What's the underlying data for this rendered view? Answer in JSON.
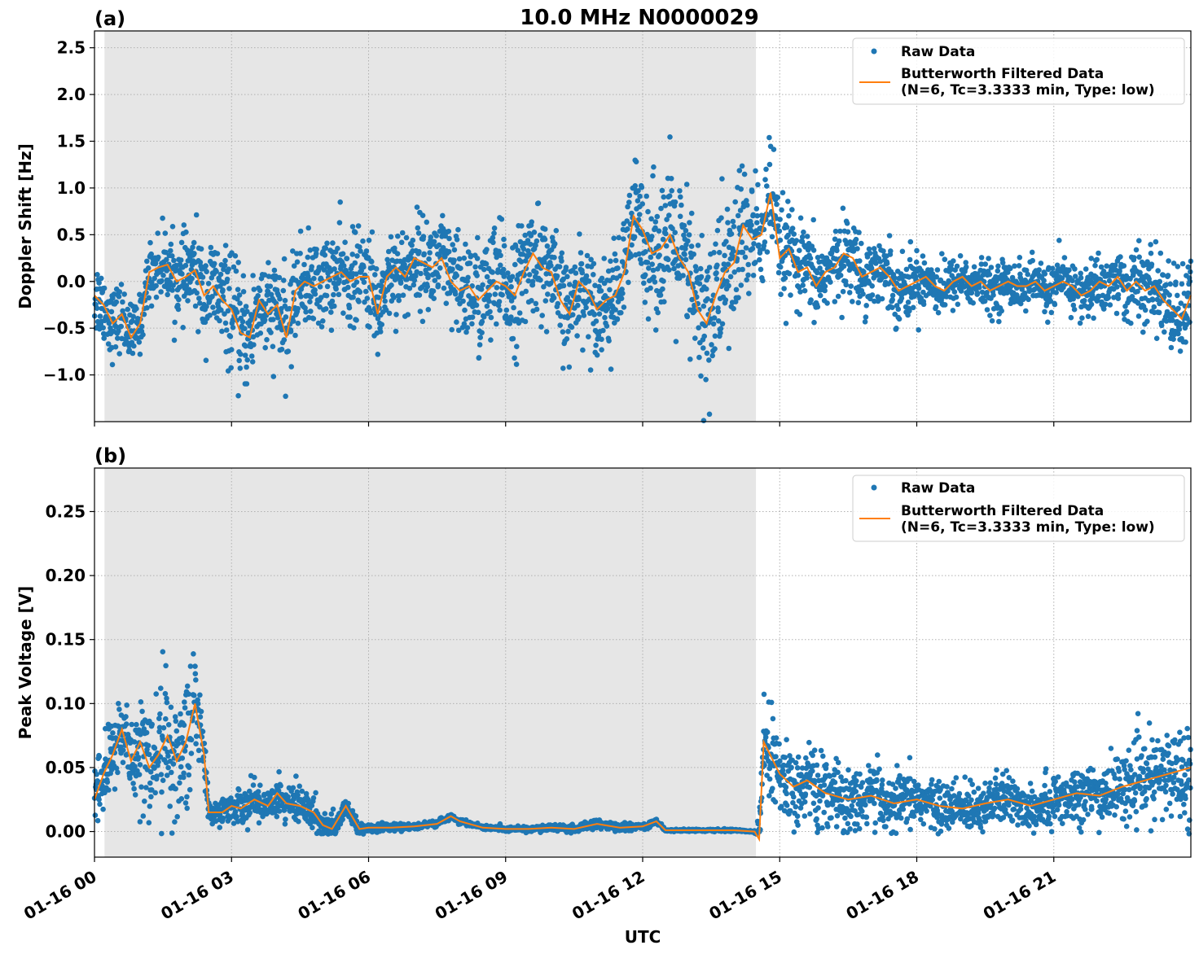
{
  "figure": {
    "title": "10.0 MHz N0000029",
    "xlabel": "UTC",
    "colors": {
      "raw": "#1f77b4",
      "filtered": "#ff7f0e",
      "shade": "#e6e6e6",
      "grid": "#b0b0b0"
    }
  },
  "chart_data": [
    {
      "type": "scatter",
      "panel_label": "(a)",
      "title": "10.0 MHz N0000029",
      "xlabel": "",
      "ylabel": "Doppler Shift [Hz]",
      "xlim": [
        0,
        24
      ],
      "ylim": [
        -1.5,
        2.68
      ],
      "x_ticks": [
        0,
        3,
        6,
        9,
        12,
        15,
        18,
        21
      ],
      "y_ticks": [
        -1.0,
        -0.5,
        0.0,
        0.5,
        1.0,
        1.5,
        2.0,
        2.5
      ],
      "y_tick_labels": [
        "−1.0",
        "−0.5",
        "0.0",
        "0.5",
        "1.0",
        "1.5",
        "2.0",
        "2.5"
      ],
      "grid": true,
      "legend_position": "top-right",
      "shaded_interval_hours": [
        0.22,
        14.48
      ],
      "series": [
        {
          "name": "Raw Data",
          "kind": "points",
          "spread": [
            [
              0.0,
              0.5
            ],
            [
              1.0,
              0.35
            ],
            [
              2.0,
              0.5
            ],
            [
              3.0,
              0.7
            ],
            [
              4.0,
              0.6
            ],
            [
              5.0,
              0.55
            ],
            [
              6.0,
              0.6
            ],
            [
              7.0,
              0.55
            ],
            [
              8.5,
              0.75
            ],
            [
              9.5,
              0.7
            ],
            [
              11.0,
              0.55
            ],
            [
              12.5,
              0.9
            ],
            [
              13.5,
              1.1
            ],
            [
              14.5,
              0.8
            ],
            [
              15.5,
              0.5
            ],
            [
              17.0,
              0.45
            ],
            [
              19.0,
              0.3
            ],
            [
              21.0,
              0.3
            ],
            [
              22.5,
              0.4
            ],
            [
              24.0,
              0.6
            ]
          ]
        },
        {
          "name": "Butterworth Filtered Data\n(N=6, Tc=3.3333 min, Type: low)",
          "kind": "line",
          "x": [
            0.0,
            0.2,
            0.4,
            0.6,
            0.8,
            1.0,
            1.2,
            1.4,
            1.6,
            1.8,
            2.0,
            2.2,
            2.4,
            2.6,
            2.8,
            3.0,
            3.2,
            3.4,
            3.6,
            3.8,
            4.0,
            4.2,
            4.4,
            4.6,
            4.8,
            5.0,
            5.2,
            5.4,
            5.6,
            5.8,
            6.0,
            6.2,
            6.4,
            6.6,
            6.8,
            7.0,
            7.2,
            7.4,
            7.6,
            7.8,
            8.0,
            8.2,
            8.4,
            8.6,
            8.8,
            9.0,
            9.2,
            9.4,
            9.6,
            9.8,
            10.0,
            10.2,
            10.4,
            10.6,
            10.8,
            11.0,
            11.2,
            11.4,
            11.6,
            11.8,
            12.0,
            12.2,
            12.4,
            12.6,
            12.8,
            13.0,
            13.2,
            13.4,
            13.6,
            13.8,
            14.0,
            14.2,
            14.4,
            14.6,
            14.8,
            15.0,
            15.2,
            15.4,
            15.6,
            15.8,
            16.0,
            16.2,
            16.4,
            16.6,
            16.8,
            17.0,
            17.2,
            17.4,
            17.6,
            17.8,
            18.0,
            18.2,
            18.4,
            18.6,
            18.8,
            19.0,
            19.2,
            19.4,
            19.6,
            19.8,
            20.0,
            20.2,
            20.4,
            20.6,
            20.8,
            21.0,
            21.2,
            21.4,
            21.6,
            21.8,
            22.0,
            22.2,
            22.4,
            22.6,
            22.8,
            23.0,
            23.2,
            23.4,
            23.6,
            23.8,
            24.0
          ],
          "y": [
            -0.15,
            -0.25,
            -0.45,
            -0.35,
            -0.6,
            -0.45,
            0.1,
            0.15,
            0.18,
            0.0,
            0.05,
            0.12,
            -0.15,
            -0.05,
            -0.2,
            -0.3,
            -0.55,
            -0.6,
            -0.2,
            -0.35,
            -0.25,
            -0.6,
            -0.1,
            0.0,
            -0.05,
            0.0,
            0.05,
            0.1,
            0.0,
            0.05,
            0.05,
            -0.35,
            0.05,
            0.15,
            0.05,
            0.25,
            0.2,
            0.15,
            0.25,
            0.0,
            -0.1,
            -0.05,
            -0.2,
            -0.1,
            0.0,
            -0.05,
            -0.15,
            0.1,
            0.3,
            0.15,
            0.1,
            -0.2,
            -0.35,
            0.0,
            -0.1,
            -0.3,
            -0.2,
            -0.15,
            0.1,
            0.7,
            0.55,
            0.3,
            0.35,
            0.5,
            0.25,
            0.1,
            -0.3,
            -0.45,
            -0.15,
            0.1,
            0.2,
            0.6,
            0.45,
            0.5,
            0.95,
            0.25,
            0.35,
            0.1,
            0.15,
            -0.05,
            0.1,
            0.15,
            0.3,
            0.25,
            0.05,
            0.1,
            0.15,
            0.05,
            -0.1,
            -0.05,
            0.0,
            0.05,
            -0.05,
            -0.1,
            0.0,
            0.05,
            -0.05,
            0.0,
            -0.1,
            -0.05,
            0.0,
            -0.05,
            -0.05,
            0.0,
            -0.1,
            -0.05,
            0.0,
            -0.05,
            -0.15,
            -0.1,
            0.0,
            -0.05,
            0.05,
            -0.1,
            0.0,
            -0.1,
            -0.05,
            -0.2,
            -0.3,
            -0.4,
            -0.15
          ]
        }
      ]
    },
    {
      "type": "scatter",
      "panel_label": "(b)",
      "title": "",
      "xlabel": "UTC",
      "ylabel": "Peak Voltage [V]",
      "xlim": [
        0,
        24
      ],
      "ylim": [
        -0.02,
        0.284
      ],
      "x_ticks": [
        0,
        3,
        6,
        9,
        12,
        15,
        18,
        21
      ],
      "x_tick_labels": [
        "01-16 00",
        "01-16 03",
        "01-16 06",
        "01-16 09",
        "01-16 12",
        "01-16 15",
        "01-16 18",
        "01-16 21"
      ],
      "y_ticks": [
        0.0,
        0.05,
        0.1,
        0.15,
        0.2,
        0.25
      ],
      "y_tick_labels": [
        "0.00",
        "0.05",
        "0.10",
        "0.15",
        "0.20",
        "0.25"
      ],
      "grid": true,
      "legend_position": "top-right",
      "shaded_interval_hours": [
        0.22,
        14.48
      ],
      "series": [
        {
          "name": "Raw Data",
          "kind": "points",
          "spread": [
            [
              0.0,
              0.03
            ],
            [
              0.8,
              0.045
            ],
            [
              1.5,
              0.055
            ],
            [
              2.2,
              0.06
            ],
            [
              2.35,
              0.04
            ],
            [
              2.5,
              0.01
            ],
            [
              3.5,
              0.018
            ],
            [
              4.5,
              0.02
            ],
            [
              5.2,
              0.012
            ],
            [
              5.6,
              0.006
            ],
            [
              6.5,
              0.003
            ],
            [
              9.0,
              0.002
            ],
            [
              11.0,
              0.004
            ],
            [
              12.3,
              0.003
            ],
            [
              12.5,
              0.001
            ],
            [
              14.45,
              0.001
            ],
            [
              14.65,
              0.045
            ],
            [
              15.0,
              0.04
            ],
            [
              16.5,
              0.03
            ],
            [
              18.0,
              0.025
            ],
            [
              19.5,
              0.022
            ],
            [
              21.0,
              0.025
            ],
            [
              22.5,
              0.03
            ],
            [
              24.0,
              0.045
            ]
          ]
        },
        {
          "name": "Butterworth Filtered Data\n(N=6, Tc=3.3333 min, Type: low)",
          "kind": "line",
          "x": [
            0.0,
            0.2,
            0.4,
            0.6,
            0.8,
            1.0,
            1.2,
            1.4,
            1.6,
            1.8,
            2.0,
            2.2,
            2.4,
            2.5,
            2.8,
            3.0,
            3.2,
            3.5,
            3.8,
            4.0,
            4.2,
            4.5,
            4.8,
            5.0,
            5.2,
            5.5,
            5.8,
            6.0,
            6.5,
            7.0,
            7.5,
            7.8,
            8.0,
            8.5,
            9.0,
            9.5,
            10.0,
            10.5,
            11.0,
            11.5,
            12.0,
            12.3,
            12.5,
            13.0,
            13.5,
            14.0,
            14.45,
            14.55,
            14.65,
            15.0,
            15.3,
            15.6,
            16.0,
            16.5,
            17.0,
            17.5,
            18.0,
            18.5,
            19.0,
            19.5,
            20.0,
            20.5,
            21.0,
            21.5,
            22.0,
            22.5,
            23.0,
            23.5,
            24.0
          ],
          "y": [
            0.025,
            0.045,
            0.06,
            0.08,
            0.055,
            0.07,
            0.05,
            0.06,
            0.075,
            0.055,
            0.07,
            0.1,
            0.06,
            0.015,
            0.015,
            0.02,
            0.018,
            0.025,
            0.02,
            0.03,
            0.022,
            0.02,
            0.015,
            0.005,
            0.002,
            0.02,
            0.002,
            0.003,
            0.003,
            0.004,
            0.006,
            0.012,
            0.008,
            0.003,
            0.002,
            0.002,
            0.003,
            0.002,
            0.006,
            0.003,
            0.004,
            0.008,
            0.001,
            0.001,
            0.001,
            0.001,
            0.0,
            -0.006,
            0.07,
            0.045,
            0.035,
            0.04,
            0.03,
            0.025,
            0.028,
            0.022,
            0.025,
            0.02,
            0.018,
            0.022,
            0.025,
            0.02,
            0.025,
            0.03,
            0.028,
            0.035,
            0.04,
            0.045,
            0.05
          ]
        }
      ]
    }
  ]
}
